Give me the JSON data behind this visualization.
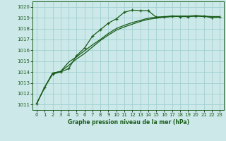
{
  "xlabel": "Graphe pression niveau de la mer (hPa)",
  "xlim": [
    -0.5,
    23.5
  ],
  "ylim": [
    1010.5,
    1020.5
  ],
  "yticks": [
    1011,
    1012,
    1013,
    1014,
    1015,
    1016,
    1017,
    1018,
    1019,
    1020
  ],
  "xticks": [
    0,
    1,
    2,
    3,
    4,
    5,
    6,
    7,
    8,
    9,
    10,
    11,
    12,
    13,
    14,
    15,
    16,
    17,
    18,
    19,
    20,
    21,
    22,
    23
  ],
  "background_color": "#cce8e8",
  "grid_color": "#99cccc",
  "line_color": "#1a5c1a",
  "line1_x": [
    0,
    1,
    2,
    3,
    4,
    5,
    6,
    7,
    8,
    9,
    10,
    11,
    12,
    13,
    14,
    15,
    16,
    17,
    18,
    19,
    20,
    21,
    22,
    23
  ],
  "line1_y": [
    1011.1,
    1012.6,
    1013.8,
    1014.0,
    1014.3,
    1015.5,
    1016.2,
    1017.3,
    1017.9,
    1018.5,
    1018.9,
    1019.5,
    1019.7,
    1019.65,
    1019.65,
    1019.05,
    1019.05,
    1019.15,
    1019.1,
    1019.1,
    1019.15,
    1019.15,
    1019.0,
    1019.05
  ],
  "line2_x": [
    0,
    1,
    2,
    3,
    4,
    5,
    6,
    7,
    8,
    9,
    10,
    11,
    12,
    13,
    14,
    15,
    16,
    17,
    18,
    19,
    20,
    21,
    22,
    23
  ],
  "line2_y": [
    1011.1,
    1012.6,
    1013.9,
    1014.05,
    1014.6,
    1015.2,
    1015.7,
    1016.3,
    1016.9,
    1017.4,
    1017.85,
    1018.15,
    1018.4,
    1018.65,
    1018.85,
    1018.95,
    1019.05,
    1019.1,
    1019.12,
    1019.12,
    1019.15,
    1019.1,
    1019.1,
    1019.1
  ],
  "line3_x": [
    0,
    1,
    2,
    3,
    4,
    5,
    6,
    7,
    8,
    9,
    10,
    11,
    12,
    13,
    14,
    15,
    16,
    17,
    18,
    19,
    20,
    21,
    22,
    23
  ],
  "line3_y": [
    1011.1,
    1012.6,
    1013.9,
    1014.05,
    1014.9,
    1015.4,
    1015.95,
    1016.5,
    1017.0,
    1017.55,
    1018.0,
    1018.3,
    1018.55,
    1018.75,
    1018.95,
    1019.05,
    1019.1,
    1019.15,
    1019.15,
    1019.15,
    1019.2,
    1019.15,
    1019.1,
    1019.1
  ]
}
